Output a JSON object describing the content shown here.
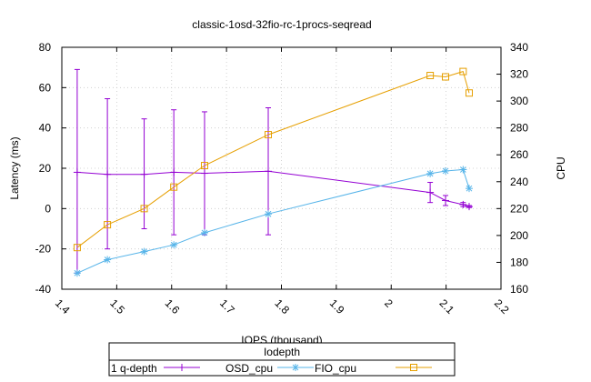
{
  "chart_data": {
    "type": "line",
    "title": "classic-1osd-32fio-rc-1procs-seqread",
    "xlabel": "IOPS (thousand)",
    "ylabel": "Latency (ms)",
    "y2label": "CPU",
    "xlim": [
      1.4,
      2.2
    ],
    "ylim": [
      -40,
      80
    ],
    "y2lim": [
      160,
      340
    ],
    "x_ticks": [
      "1.4",
      "1.5",
      "1.6",
      "1.7",
      "1.8",
      "1.9",
      "2",
      "2.1",
      "2.2"
    ],
    "y_ticks": [
      "-40",
      "-20",
      "0",
      "20",
      "40",
      "60",
      "80"
    ],
    "y2_ticks": [
      "160",
      "180",
      "200",
      "220",
      "240",
      "260",
      "280",
      "300",
      "320",
      "340"
    ],
    "grid": true,
    "legend": {
      "title": "Iodepth",
      "label": "1 q-depth",
      "placement": "bottom-center"
    },
    "series": [
      {
        "name": "OSD_cpu",
        "axis": "y",
        "color": "#9400d3",
        "marker": "plus",
        "points": [
          {
            "x": 1.428,
            "y": 18.0,
            "lo": -32.0,
            "hi": 69.0
          },
          {
            "x": 1.483,
            "y": 17.0,
            "lo": -20.0,
            "hi": 54.5
          },
          {
            "x": 1.55,
            "y": 17.0,
            "lo": -10.0,
            "hi": 44.5
          },
          {
            "x": 1.604,
            "y": 18.0,
            "lo": -13.0,
            "hi": 49.0
          },
          {
            "x": 1.66,
            "y": 17.5,
            "lo": -13.0,
            "hi": 48.0
          },
          {
            "x": 1.776,
            "y": 18.5,
            "lo": -13.0,
            "hi": 50.0
          },
          {
            "x": 2.071,
            "y": 8.0,
            "lo": 3.0,
            "hi": 13.0
          },
          {
            "x": 2.099,
            "y": 4.0,
            "lo": 1.5,
            "hi": 6.5
          },
          {
            "x": 2.131,
            "y": 2.0,
            "lo": 1.0,
            "hi": 3.0
          },
          {
            "x": 2.142,
            "y": 1.0,
            "lo": 0.5,
            "hi": 1.5
          }
        ]
      },
      {
        "name": "FIO_cpu",
        "axis": "y2",
        "color": "#56b4e9",
        "marker": "star",
        "points": [
          {
            "x": 1.428,
            "y": 172
          },
          {
            "x": 1.483,
            "y": 182
          },
          {
            "x": 1.55,
            "y": 188
          },
          {
            "x": 1.604,
            "y": 193
          },
          {
            "x": 1.66,
            "y": 202
          },
          {
            "x": 1.776,
            "y": 216
          },
          {
            "x": 2.071,
            "y": 246
          },
          {
            "x": 2.099,
            "y": 248
          },
          {
            "x": 2.131,
            "y": 249
          },
          {
            "x": 2.142,
            "y": 235
          }
        ]
      },
      {
        "name": "",
        "axis": "y2",
        "color": "#e69f00",
        "marker": "square",
        "points": [
          {
            "x": 1.428,
            "y": 191
          },
          {
            "x": 1.483,
            "y": 208
          },
          {
            "x": 1.55,
            "y": 220
          },
          {
            "x": 1.604,
            "y": 236
          },
          {
            "x": 1.66,
            "y": 252
          },
          {
            "x": 1.776,
            "y": 275
          },
          {
            "x": 2.071,
            "y": 319
          },
          {
            "x": 2.099,
            "y": 318
          },
          {
            "x": 2.131,
            "y": 322
          },
          {
            "x": 2.142,
            "y": 306
          }
        ]
      }
    ]
  }
}
